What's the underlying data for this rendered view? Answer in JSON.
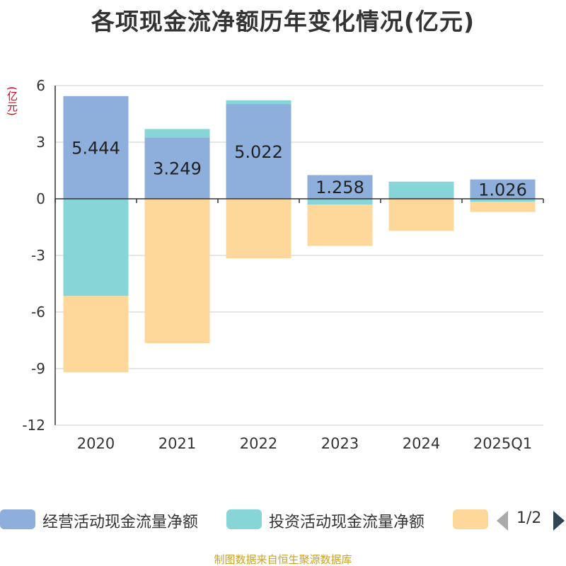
{
  "title": "各项现金流净额历年变化情况(亿元)",
  "unit_label": "(亿元)",
  "source": "制图数据来自恒生聚源数据库",
  "legend": {
    "pager_text": "1/2"
  },
  "colors": {
    "operating": "#8eaedb",
    "investing": "#88d5d8",
    "financing": "#fdd89a",
    "grid": "#cccccc",
    "axis": "#333333"
  },
  "chart_data": {
    "type": "bar",
    "stacked": true,
    "categories": [
      "2020",
      "2021",
      "2022",
      "2023",
      "2024",
      "2025Q1"
    ],
    "ylim": [
      -12,
      6
    ],
    "yticks": [
      6,
      3,
      0,
      -3,
      -6,
      -9,
      -12
    ],
    "grid": true,
    "legend_position": "bottom",
    "series": [
      {
        "name": "经营活动现金流量净额",
        "color_key": "operating",
        "values": [
          5.444,
          3.249,
          5.022,
          1.258,
          0.06,
          1.026
        ],
        "labels": [
          "5.444",
          "3.249",
          "5.022",
          "1.258",
          "",
          "1.026"
        ]
      },
      {
        "name": "投资活动现金流量净额",
        "color_key": "investing",
        "values": [
          -5.15,
          0.45,
          0.2,
          -0.3,
          0.85,
          -0.15
        ],
        "labels": [
          "",
          "",
          "",
          "",
          "",
          ""
        ]
      },
      {
        "name": "",
        "color_key": "financing",
        "values": [
          -4.05,
          -7.65,
          -3.15,
          -2.2,
          -1.7,
          -0.55
        ],
        "labels": [
          "",
          "",
          "",
          "",
          "",
          ""
        ]
      }
    ]
  }
}
